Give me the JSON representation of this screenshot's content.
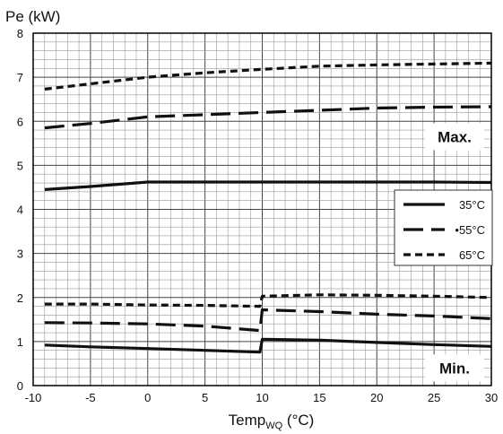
{
  "chart_data": {
    "type": "line",
    "title": "",
    "ylabel": "Pe (kW)",
    "xlabel": {
      "base": "Temp",
      "subscript": "WQ",
      "suffix": " (°C)"
    },
    "xlim": [
      -10,
      30
    ],
    "ylim": [
      0,
      8
    ],
    "x_ticks": [
      -10,
      -5,
      0,
      5,
      10,
      15,
      20,
      25,
      30
    ],
    "y_ticks": [
      0,
      1,
      2,
      3,
      4,
      5,
      6,
      7,
      8
    ],
    "grid": true,
    "legend_position": "right",
    "legend": [
      {
        "label": "35°C",
        "style": "solid"
      },
      {
        "label": "•55°C",
        "style": "long-dash"
      },
      {
        "label": "65°C",
        "style": "short-dash"
      }
    ],
    "annotations": [
      {
        "text": "Max.",
        "x": 30,
        "y": 5.65
      },
      {
        "text": "Min.",
        "x": 30,
        "y": 0.4
      }
    ],
    "series": [
      {
        "style": "solid",
        "group": "max",
        "points": [
          [
            -9,
            4.45
          ],
          [
            -5,
            4.52
          ],
          [
            0,
            4.62
          ],
          [
            5,
            4.62
          ],
          [
            10,
            4.62
          ],
          [
            15,
            4.62
          ],
          [
            20,
            4.62
          ],
          [
            25,
            4.62
          ],
          [
            30,
            4.61
          ]
        ]
      },
      {
        "style": "long-dash",
        "group": "max",
        "points": [
          [
            -9,
            5.85
          ],
          [
            -5,
            5.95
          ],
          [
            0,
            6.1
          ],
          [
            5,
            6.15
          ],
          [
            10,
            6.2
          ],
          [
            15,
            6.25
          ],
          [
            20,
            6.3
          ],
          [
            25,
            6.32
          ],
          [
            30,
            6.33
          ]
        ]
      },
      {
        "style": "short-dash",
        "group": "max",
        "points": [
          [
            -9,
            6.73
          ],
          [
            -5,
            6.85
          ],
          [
            0,
            7.0
          ],
          [
            5,
            7.1
          ],
          [
            10,
            7.18
          ],
          [
            15,
            7.25
          ],
          [
            20,
            7.28
          ],
          [
            25,
            7.3
          ],
          [
            30,
            7.32
          ]
        ]
      },
      {
        "style": "solid",
        "group": "min",
        "points": [
          [
            -9,
            0.92
          ],
          [
            -5,
            0.88
          ],
          [
            0,
            0.84
          ],
          [
            5,
            0.8
          ],
          [
            9.8,
            0.76
          ],
          [
            10,
            1.05
          ],
          [
            15,
            1.03
          ],
          [
            20,
            0.98
          ],
          [
            25,
            0.93
          ],
          [
            30,
            0.89
          ]
        ]
      },
      {
        "style": "long-dash",
        "group": "min",
        "points": [
          [
            -9,
            1.43
          ],
          [
            -5,
            1.42
          ],
          [
            0,
            1.4
          ],
          [
            5,
            1.35
          ],
          [
            9.8,
            1.25
          ],
          [
            10,
            1.72
          ],
          [
            15,
            1.68
          ],
          [
            20,
            1.62
          ],
          [
            25,
            1.58
          ],
          [
            30,
            1.52
          ]
        ]
      },
      {
        "style": "short-dash",
        "group": "min",
        "points": [
          [
            -9,
            1.85
          ],
          [
            -5,
            1.85
          ],
          [
            0,
            1.83
          ],
          [
            5,
            1.82
          ],
          [
            9.8,
            1.8
          ],
          [
            10,
            2.03
          ],
          [
            15,
            2.06
          ],
          [
            20,
            2.05
          ],
          [
            25,
            2.03
          ],
          [
            30,
            2.0
          ]
        ]
      }
    ]
  }
}
